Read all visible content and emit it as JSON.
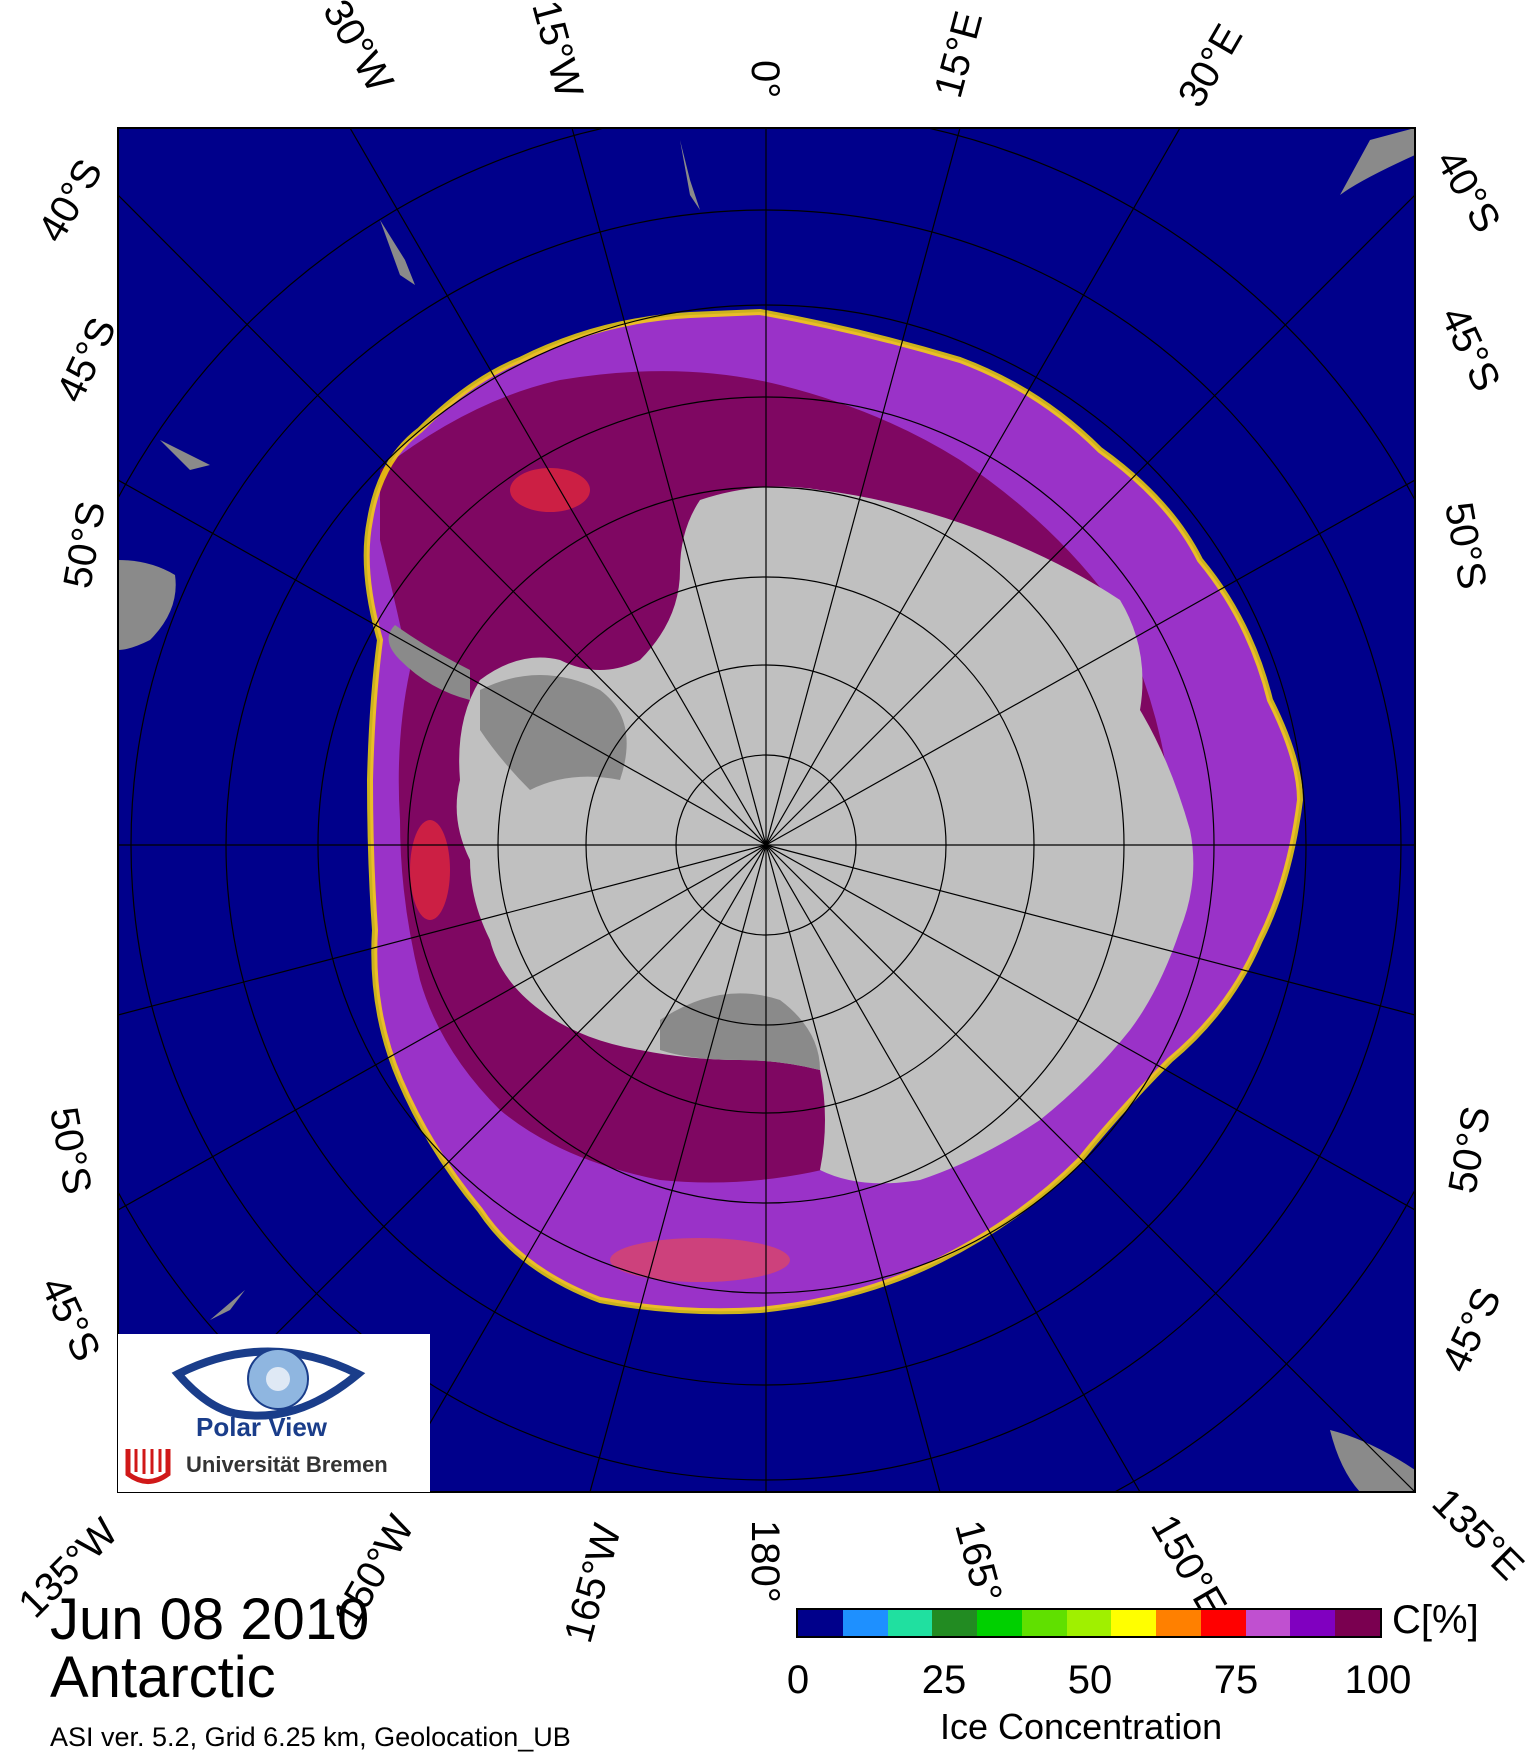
{
  "title": {
    "date": "Jun 08 2010",
    "region": "Antarctic",
    "info": "ASI ver. 5.2,  Grid 6.25 km, Geolocation_UB"
  },
  "map": {
    "projection": "polar-stereographic-south",
    "colors": {
      "ocean": "#00008b",
      "land": "#c0c0c0",
      "ice_shelf": "#8a8a8a",
      "ice_high": "#7a0050",
      "ice_mid": "#a030d0",
      "ice_edge": "#ffe000",
      "grid": "#000000"
    },
    "longitude_labels": [
      "30°W",
      "15°W",
      "0°",
      "15°E",
      "30°E",
      "135°E",
      "150°E",
      "165°",
      "180°",
      "165°W",
      "150°W",
      "135°W"
    ],
    "latitude_labels_left": [
      "40°S",
      "45°S",
      "50°S",
      "50°S",
      "45°S"
    ],
    "latitude_labels_right": [
      "40°S",
      "45°S",
      "50°S",
      "50°S",
      "45°S"
    ]
  },
  "legend": {
    "unit": "C[%]",
    "title": "Ice Concentration",
    "ticks": [
      "0",
      "25",
      "50",
      "75",
      "100"
    ],
    "colors": [
      "#00008b",
      "#1e90ff",
      "#20e0a0",
      "#228b22",
      "#00d000",
      "#60e000",
      "#a0f000",
      "#ffff00",
      "#ff8000",
      "#ff0000",
      "#c050d0",
      "#8000c0",
      "#7a0050"
    ]
  },
  "logo": {
    "name": "Polar View",
    "institution": "Universität Bremen"
  }
}
